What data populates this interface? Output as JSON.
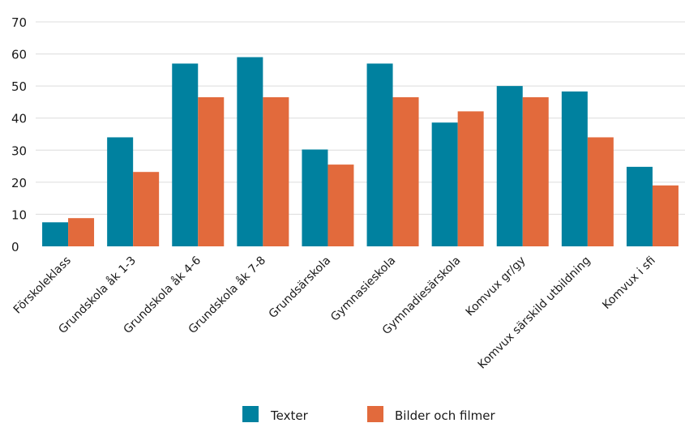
{
  "chart_data": {
    "type": "bar",
    "categories": [
      "Förskoleklass",
      "Grundskola åk 1-3",
      "Grundskola åk 4-6",
      "Grundskola åk 7-8",
      "Grundsärskola",
      "Gymnasieskola",
      "Gymnadiesärskola",
      "Komvux gr/gy",
      "Komvux särskild utbildning",
      "Komvux i sfi"
    ],
    "series": [
      {
        "name": "Texter",
        "color": "#00819f",
        "values": [
          7.5,
          34,
          57,
          59,
          30.2,
          57,
          38.6,
          50,
          48.3,
          24.8
        ]
      },
      {
        "name": "Bilder och filmer",
        "color": "#e26a3c",
        "values": [
          8.8,
          23.2,
          46.5,
          46.5,
          25.5,
          46.5,
          42.1,
          46.5,
          34,
          19
        ]
      }
    ],
    "yticks": [
      "0",
      "10",
      "20",
      "30",
      "40",
      "50",
      "60",
      "70"
    ],
    "ylim": [
      0,
      70
    ],
    "grid": true,
    "legend_position": "bottom"
  }
}
